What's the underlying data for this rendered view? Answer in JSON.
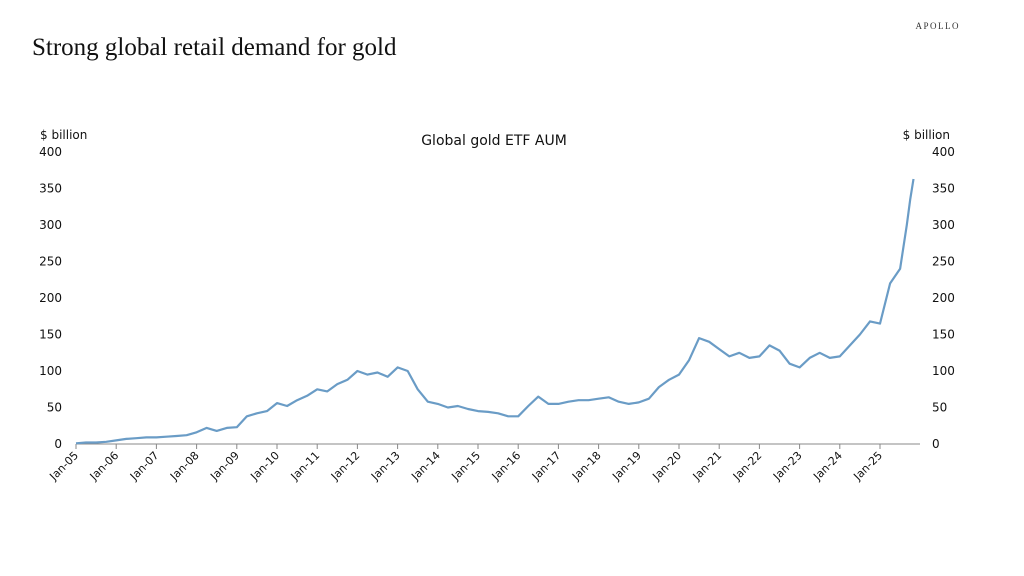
{
  "slide": {
    "title": "Strong global retail demand for gold",
    "logo": "APOLLO"
  },
  "chart_data": {
    "type": "line",
    "title": "Global gold ETF AUM",
    "ylabel_left": "$ billion",
    "ylabel_right": "$ billion",
    "ylim": [
      0,
      400
    ],
    "yticks": [
      0,
      50,
      100,
      150,
      200,
      250,
      300,
      350,
      400
    ],
    "xticks": [
      "Jan-05",
      "Jan-06",
      "Jan-07",
      "Jan-08",
      "Jan-09",
      "Jan-10",
      "Jan-11",
      "Jan-12",
      "Jan-13",
      "Jan-14",
      "Jan-15",
      "Jan-16",
      "Jan-17",
      "Jan-18",
      "Jan-19",
      "Jan-20",
      "Jan-21",
      "Jan-22",
      "Jan-23",
      "Jan-24",
      "Jan-25"
    ],
    "grid": false,
    "line_color": "#6a9cc6",
    "series": [
      {
        "x": [
          "2005-01",
          "2005-04",
          "2005-07",
          "2005-10",
          "2006-01",
          "2006-04",
          "2006-07",
          "2006-10",
          "2007-01",
          "2007-04",
          "2007-07",
          "2007-10",
          "2008-01",
          "2008-04",
          "2008-07",
          "2008-10",
          "2009-01",
          "2009-04",
          "2009-07",
          "2009-10",
          "2010-01",
          "2010-04",
          "2010-07",
          "2010-10",
          "2011-01",
          "2011-04",
          "2011-07",
          "2011-10",
          "2012-01",
          "2012-04",
          "2012-07",
          "2012-10",
          "2013-01",
          "2013-04",
          "2013-07",
          "2013-10",
          "2014-01",
          "2014-04",
          "2014-07",
          "2014-10",
          "2015-01",
          "2015-04",
          "2015-07",
          "2015-10",
          "2016-01",
          "2016-04",
          "2016-07",
          "2016-10",
          "2017-01",
          "2017-04",
          "2017-07",
          "2017-10",
          "2018-01",
          "2018-04",
          "2018-07",
          "2018-10",
          "2019-01",
          "2019-04",
          "2019-07",
          "2019-10",
          "2020-01",
          "2020-04",
          "2020-07",
          "2020-10",
          "2021-01",
          "2021-04",
          "2021-07",
          "2021-10",
          "2022-01",
          "2022-04",
          "2022-07",
          "2022-10",
          "2023-01",
          "2023-04",
          "2023-07",
          "2023-10",
          "2024-01",
          "2024-04",
          "2024-07",
          "2024-10",
          "2025-01",
          "2025-04",
          "2025-07",
          "2025-09",
          "2025-10",
          "2025-11"
        ],
        "values": [
          1,
          2,
          2,
          3,
          5,
          7,
          8,
          9,
          9,
          10,
          11,
          12,
          16,
          22,
          18,
          22,
          23,
          38,
          42,
          45,
          56,
          52,
          60,
          66,
          75,
          72,
          82,
          88,
          100,
          95,
          98,
          92,
          105,
          100,
          75,
          58,
          55,
          50,
          52,
          48,
          45,
          44,
          42,
          38,
          38,
          52,
          65,
          55,
          55,
          58,
          60,
          60,
          62,
          64,
          58,
          55,
          57,
          62,
          78,
          88,
          95,
          115,
          145,
          140,
          130,
          120,
          125,
          118,
          120,
          135,
          128,
          110,
          105,
          118,
          125,
          118,
          120,
          135,
          150,
          168,
          165,
          220,
          240,
          300,
          335,
          363
        ]
      }
    ]
  }
}
